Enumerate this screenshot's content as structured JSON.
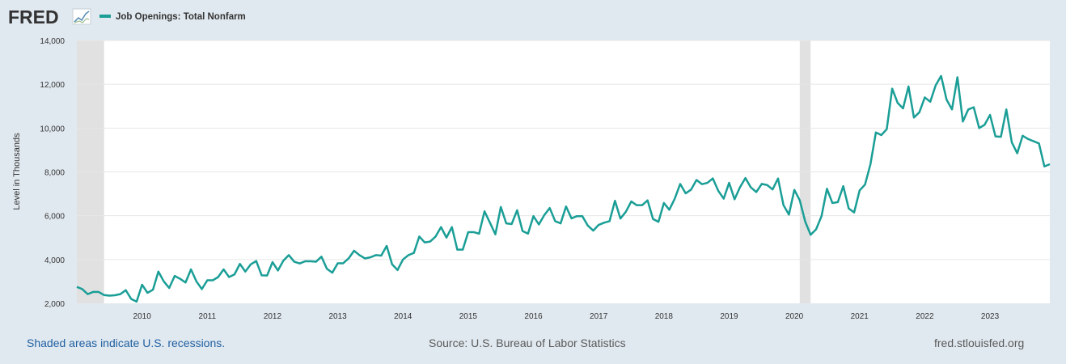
{
  "header": {
    "logo_text": "FRED",
    "series_title": "Job Openings: Total Nonfarm",
    "series_color": "#1a9e96"
  },
  "footer": {
    "recession_note": "Shaded areas indicate U.S. recessions.",
    "source": "Source: U.S. Bureau of Labor Statistics",
    "site": "fred.stlouisfed.org"
  },
  "colors": {
    "background": "#e1e9f0",
    "plot_background": "#ffffff",
    "gridline": "#e6e6e6",
    "recession_shade": "#e1e1e1",
    "tick_text": "#333333"
  },
  "chart_data": {
    "type": "line",
    "title": "Job Openings: Total Nonfarm",
    "xlabel": "",
    "ylabel": "Level in Thousands",
    "x_start": 2009.0,
    "x_end": 2023.917,
    "ylim": [
      2000,
      14000
    ],
    "yticks": [
      2000,
      4000,
      6000,
      8000,
      10000,
      12000,
      14000
    ],
    "ytick_labels": [
      "2,000",
      "4,000",
      "6,000",
      "8,000",
      "10,000",
      "12,000",
      "14,000"
    ],
    "xticks": [
      2010,
      2011,
      2012,
      2013,
      2014,
      2015,
      2016,
      2017,
      2018,
      2019,
      2020,
      2021,
      2022,
      2023
    ],
    "xtick_labels": [
      "2010",
      "2011",
      "2012",
      "2013",
      "2014",
      "2015",
      "2016",
      "2017",
      "2018",
      "2019",
      "2020",
      "2021",
      "2022",
      "2023"
    ],
    "grid": true,
    "recessions": [
      {
        "start": 2009.0,
        "end": 2009.417
      },
      {
        "start": 2020.083,
        "end": 2020.25
      }
    ],
    "series": [
      {
        "name": "Job Openings: Total Nonfarm",
        "color": "#1a9e96",
        "values": [
          2750,
          2650,
          2420,
          2520,
          2520,
          2380,
          2350,
          2370,
          2420,
          2600,
          2200,
          2080,
          2850,
          2480,
          2620,
          3450,
          3000,
          2700,
          3250,
          3120,
          2950,
          3550,
          3000,
          2650,
          3050,
          3050,
          3200,
          3550,
          3200,
          3320,
          3800,
          3450,
          3780,
          3930,
          3280,
          3270,
          3880,
          3500,
          3950,
          4200,
          3900,
          3820,
          3920,
          3920,
          3900,
          4130,
          3580,
          3400,
          3830,
          3830,
          4050,
          4400,
          4200,
          4050,
          4100,
          4200,
          4180,
          4620,
          3780,
          3520,
          4000,
          4200,
          4300,
          5050,
          4780,
          4820,
          5050,
          5480,
          5000,
          5480,
          4450,
          4450,
          5250,
          5250,
          5180,
          6200,
          5680,
          5150,
          6400,
          5650,
          5620,
          6250,
          5300,
          5180,
          5980,
          5600,
          6030,
          6350,
          5750,
          5650,
          6420,
          5880,
          5980,
          5980,
          5550,
          5320,
          5580,
          5680,
          5750,
          6680,
          5870,
          6180,
          6650,
          6480,
          6480,
          6700,
          5850,
          5720,
          6580,
          6270,
          6780,
          7450,
          7020,
          7190,
          7630,
          7440,
          7500,
          7700,
          7140,
          6780,
          7500,
          6750,
          7300,
          7720,
          7290,
          7080,
          7450,
          7400,
          7200,
          7700,
          6480,
          6050,
          7180,
          6700,
          5730,
          5130,
          5380,
          5980,
          7230,
          6580,
          6620,
          7350,
          6330,
          6150,
          7150,
          7420,
          8350,
          9800,
          9680,
          9950,
          11800,
          11150,
          10900,
          11900,
          10480,
          10720,
          11400,
          11200,
          11950,
          12380,
          11300,
          10850,
          12320,
          10300,
          10850,
          10950,
          10000,
          10150,
          10600,
          9620,
          9600,
          10850,
          9350,
          8850,
          9650,
          9500,
          9400,
          9300,
          8250,
          8350
        ]
      }
    ]
  }
}
